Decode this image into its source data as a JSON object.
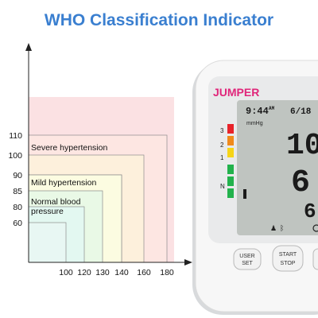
{
  "title": "WHO Classification Indicator",
  "chart_data": {
    "type": "area",
    "title": "WHO Classification Indicator",
    "xlabel": "",
    "ylabel": "",
    "x_ticks": [
      100,
      120,
      130,
      140,
      160,
      180
    ],
    "y_ticks": [
      60,
      80,
      85,
      90,
      100,
      110
    ],
    "zones": [
      {
        "label": "",
        "x_max": 180,
        "y_max": 110,
        "open_ended": true,
        "color": "#fbe1e3"
      },
      {
        "label": "Severe hypertension",
        "x_max": 180,
        "y_max": 110,
        "color": "#fde6e2"
      },
      {
        "label": "",
        "x_max": 160,
        "y_max": 100,
        "color": "#fdf0dc"
      },
      {
        "label": "",
        "x_max": 140,
        "y_max": 90,
        "color": "#fcfce1"
      },
      {
        "label": "Mild hypertension",
        "x_max": 140,
        "y_max": 90,
        "color": "#fcfce1"
      },
      {
        "label": "",
        "x_max": 130,
        "y_max": 85,
        "color": "#e9f9e6"
      },
      {
        "label": "Normal blood pressure",
        "x_max": 120,
        "y_max": 80,
        "color": "#e3f8f1"
      },
      {
        "label": "",
        "x_max": 100,
        "y_max": 60,
        "color": "#e8f7f3"
      }
    ],
    "legend": "none",
    "grid": false
  },
  "device": {
    "brand": "JUMPER",
    "time": "9:44",
    "am": "AM",
    "date": "6/18",
    "unit": "mmHg",
    "systolic_partial": "10",
    "diastolic_partial": "6",
    "pulse_partial": "6",
    "indicator_levels": [
      "3",
      "2",
      "1",
      "N"
    ],
    "indicator_colors": [
      "#e8232a",
      "#f08a1c",
      "#f6d417",
      "#22b24c",
      "#22b24c",
      "#22b24c"
    ],
    "buttons": [
      {
        "line1": "USER",
        "line2": "SET"
      },
      {
        "line1": "START",
        "line2": "STOP"
      }
    ]
  }
}
